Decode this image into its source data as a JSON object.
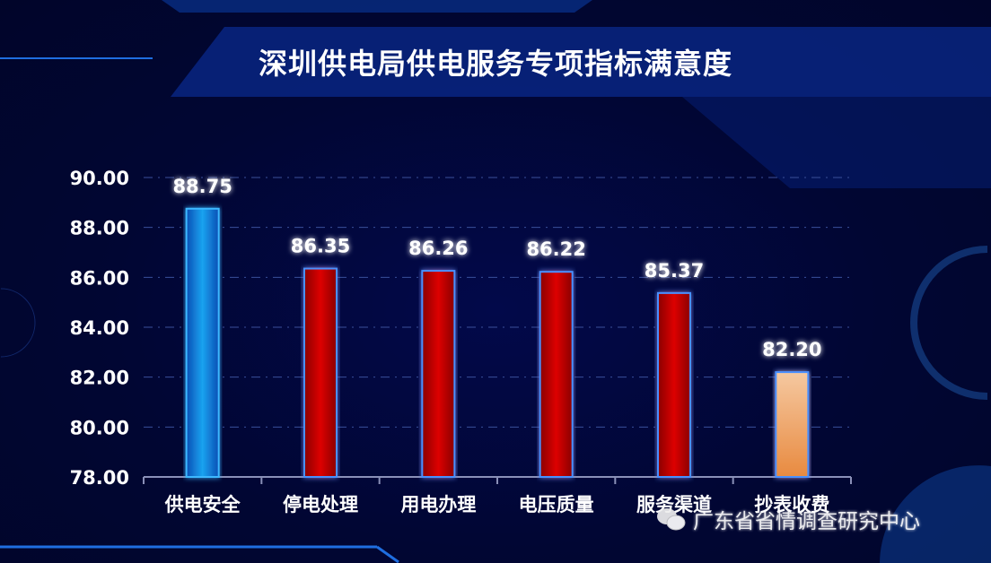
{
  "chart_data": {
    "type": "bar",
    "title": "深圳供电局供电服务专项指标满意度",
    "categories": [
      "供电安全",
      "停电处理",
      "用电办理",
      "电压质量",
      "服务渠道",
      "抄表收费"
    ],
    "values": [
      88.75,
      86.35,
      86.26,
      86.22,
      85.37,
      82.2
    ],
    "data_labels": [
      "88.75",
      "86.35",
      "86.26",
      "86.22",
      "85.37",
      "82.20"
    ],
    "ylim": [
      78,
      90
    ],
    "yticks": [
      "78.00",
      "80.00",
      "82.00",
      "84.00",
      "86.00",
      "88.00",
      "90.00"
    ],
    "grid": true,
    "bar_colors": [
      "#1aa3f0",
      "#cc0000",
      "#cc0000",
      "#cc0000",
      "#cc0000",
      "#f0a060"
    ]
  },
  "watermark": {
    "text": "广东省省情调查研究中心",
    "icon": "wechat-icon"
  }
}
